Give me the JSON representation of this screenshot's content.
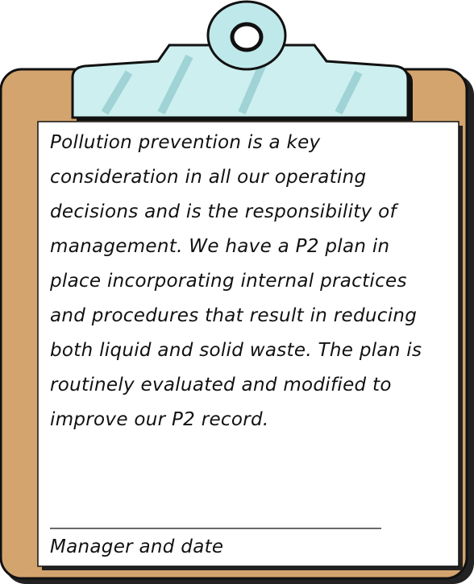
{
  "note": {
    "body_lines": [
      "Pollution prevention is a key",
      "consideration in all our operating",
      "decisions and is the responsibility of",
      "management. We have a P2 plan in",
      "place incorporating internal practices",
      "and procedures that result in reducing",
      "both liquid and solid waste. The plan is",
      "routinely evaluated and modified to",
      "improve our P2 record."
    ],
    "signature_label": "Manager and date"
  }
}
